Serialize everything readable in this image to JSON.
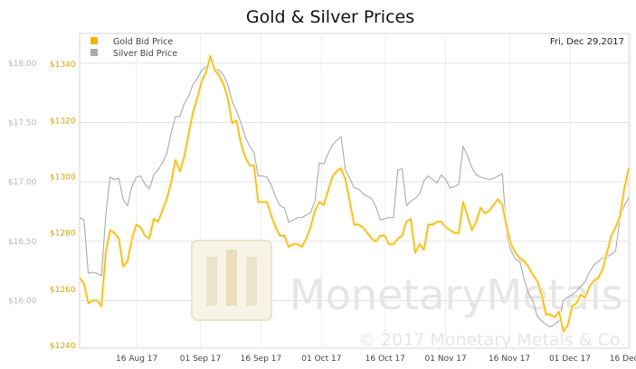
{
  "chart_data": {
    "type": "line",
    "title": "Gold & Silver Prices",
    "date_label": "Fri, Dec 29,2017",
    "watermark": {
      "brand": "MonetaryMetals",
      "copyright": "© 2017 Monetary Metals & Co."
    },
    "x_ticks": [
      "16 Aug 17",
      "01 Sep 17",
      "16 Sep 17",
      "01 Oct 17",
      "16 Oct 17",
      "01 Nov 17",
      "16 Nov 17",
      "01 Dec 17",
      "16 Dec 17"
    ],
    "y_silver": {
      "ylim": [
        15.6,
        18.25
      ],
      "ticks": [
        "$18.00",
        "$17.50",
        "$17.00",
        "$16.50",
        "$16.00"
      ]
    },
    "y_gold": {
      "ylim": [
        1239,
        1351
      ],
      "ticks": [
        "$1340",
        "$1320",
        "$1300",
        "$1280",
        "$1260",
        "$1240"
      ]
    },
    "legend": {
      "position": "top-left"
    },
    "series": [
      {
        "name": "Gold Bid Price",
        "color": "#f2b600",
        "axis": "gold",
        "values": [
          1264,
          1262,
          1255,
          1256,
          1256,
          1254,
          1273,
          1281,
          1280,
          1278,
          1268,
          1270,
          1278,
          1283,
          1282,
          1279,
          1278,
          1285,
          1284,
          1288,
          1292,
          1298,
          1306,
          1302,
          1307,
          1315,
          1323,
          1328,
          1334,
          1337,
          1343,
          1338,
          1336,
          1333,
          1328,
          1319,
          1320,
          1312,
          1307,
          1304,
          1304,
          1291,
          1291,
          1291,
          1286,
          1282,
          1279,
          1279,
          1275,
          1276,
          1276,
          1275,
          1278,
          1282,
          1288,
          1291,
          1290,
          1295,
          1300,
          1302,
          1303,
          1299,
          1291,
          1283,
          1283,
          1282,
          1280,
          1278,
          1277,
          1279,
          1279,
          1276,
          1276,
          1278,
          1279,
          1284,
          1285,
          1273,
          1276,
          1274,
          1283,
          1283,
          1284,
          1284,
          1282,
          1281,
          1280,
          1280,
          1291,
          1286,
          1281,
          1284,
          1289,
          1287,
          1288,
          1290,
          1292,
          1290,
          1282,
          1276,
          1273,
          1271,
          1270,
          1268,
          1265,
          1263,
          1258,
          1251,
          1251,
          1250,
          1252,
          1245,
          1247,
          1254,
          1255,
          1258,
          1257,
          1261,
          1263,
          1264,
          1267,
          1273,
          1279,
          1282,
          1286,
          1296,
          1303
        ]
      },
      {
        "name": "Silver Bid Price",
        "color": "#aaaaaa",
        "axis": "silver",
        "values": [
          16.7,
          16.68,
          16.23,
          16.24,
          16.23,
          16.21,
          16.72,
          17.04,
          17.02,
          17.03,
          16.85,
          16.8,
          16.96,
          17.04,
          17.05,
          16.98,
          16.94,
          17.06,
          17.1,
          17.16,
          17.24,
          17.41,
          17.55,
          17.55,
          17.66,
          17.72,
          17.82,
          17.87,
          17.94,
          17.97,
          18.05,
          17.95,
          17.94,
          17.9,
          17.82,
          17.68,
          17.6,
          17.5,
          17.38,
          17.3,
          17.25,
          17.05,
          17.05,
          17.04,
          16.97,
          16.87,
          16.8,
          16.78,
          16.66,
          16.68,
          16.7,
          16.7,
          16.72,
          16.74,
          16.84,
          17.16,
          17.15,
          17.24,
          17.31,
          17.35,
          17.38,
          17.1,
          17.03,
          16.95,
          16.94,
          16.9,
          16.88,
          16.86,
          16.79,
          16.68,
          16.69,
          16.7,
          16.7,
          17.1,
          17.11,
          16.8,
          16.84,
          16.86,
          16.9,
          17.01,
          17.05,
          17.02,
          16.99,
          17.06,
          17.02,
          16.95,
          16.96,
          16.98,
          17.3,
          17.22,
          17.12,
          17.06,
          17.04,
          17.03,
          17.02,
          17.03,
          17.05,
          17.07,
          16.55,
          16.42,
          16.35,
          16.33,
          16.18,
          16.06,
          16.0,
          15.87,
          15.83,
          15.8,
          15.78,
          15.8,
          15.83,
          16.0,
          16.03,
          16.05,
          16.08,
          16.12,
          16.16,
          16.24,
          16.3,
          16.33,
          16.36,
          16.37,
          16.39,
          16.42,
          16.7,
          16.8,
          16.87
        ]
      }
    ]
  }
}
